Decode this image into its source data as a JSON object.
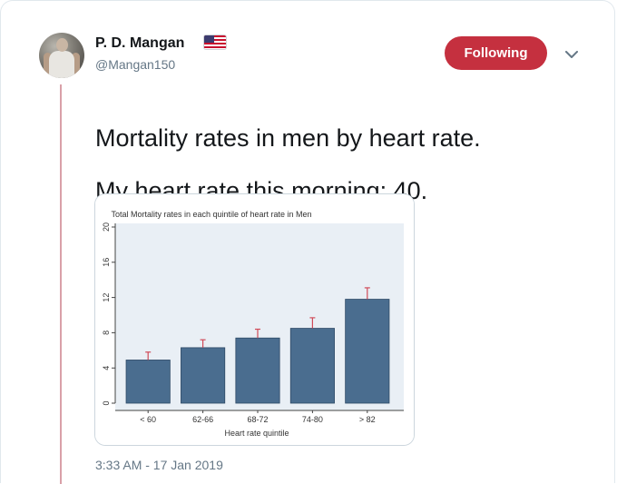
{
  "tweet": {
    "author_name": "P. D. Mangan",
    "author_handle": "@Mangan150",
    "flag_icon": "us-flag-icon",
    "follow_button_label": "Following",
    "follow_button_color": "#c5303f",
    "text_line1": "Mortality rates in men by heart rate.",
    "text_line2": "My heart rate this morning: 40.",
    "timestamp": "3:33 AM - 17 Jan 2019",
    "menu_icon": "chevron-down-icon"
  },
  "chart_data": {
    "type": "bar",
    "title": "Total Mortality rates in each quintile of heart rate in Men",
    "xlabel": "Heart rate quintile",
    "ylabel": "",
    "categories": [
      "< 60",
      "62-66",
      "68-72",
      "74-80",
      "> 82"
    ],
    "values": [
      4.9,
      6.3,
      7.4,
      8.5,
      11.8
    ],
    "error_upper": [
      5.8,
      7.2,
      8.4,
      9.7,
      13.1
    ],
    "yticks": [
      "0",
      "4",
      "8",
      "12",
      "16",
      "20"
    ],
    "ylim": [
      0,
      20
    ],
    "bar_color": "#4a6d8f",
    "error_bar_color": "#d04a58",
    "plot_background": "#e9eff5",
    "grid": false
  }
}
